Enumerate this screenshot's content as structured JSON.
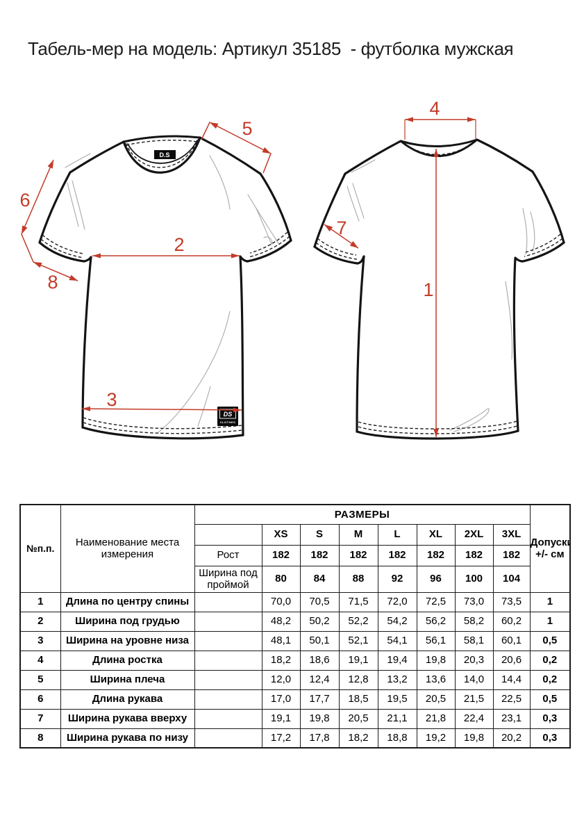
{
  "page": {
    "title": "Табель-мер на модель: Артикул 35185  - футболка мужская"
  },
  "diagram": {
    "arrow_color": "#c23b28",
    "labels": {
      "1": "1",
      "2": "2",
      "3": "3",
      "4": "4",
      "5": "5",
      "6": "6",
      "7": "7",
      "8": "8"
    },
    "collar_tag": "D.S",
    "hem_tag_line1": "DS",
    "hem_tag_line2": "CLOTHES"
  },
  "table": {
    "row_num_header": "№п.п.",
    "name_header": "Наименование места\nизмерения",
    "col_group_header": "РАЗМЕРЫ",
    "tolerance_header": "Допуски\n+/- см",
    "sizes": [
      "XS",
      "S",
      "M",
      "L",
      "XL",
      "2XL",
      "3XL"
    ],
    "height_row": {
      "label": "Рост",
      "values": [
        "182",
        "182",
        "182",
        "182",
        "182",
        "182",
        "182"
      ]
    },
    "armhole_row": {
      "label": "Ширина под\nпроймой",
      "values": [
        "80",
        "84",
        "88",
        "92",
        "96",
        "100",
        "104"
      ]
    },
    "rows": [
      {
        "num": "1",
        "name": "Длина по центру спины",
        "values": [
          "70,0",
          "70,5",
          "71,5",
          "72,0",
          "72,5",
          "73,0",
          "73,5"
        ],
        "tolerance": "1"
      },
      {
        "num": "2",
        "name": "Ширина под грудью",
        "values": [
          "48,2",
          "50,2",
          "52,2",
          "54,2",
          "56,2",
          "58,2",
          "60,2"
        ],
        "tolerance": "1"
      },
      {
        "num": "3",
        "name": "Ширина на уровне низа",
        "values": [
          "48,1",
          "50,1",
          "52,1",
          "54,1",
          "56,1",
          "58,1",
          "60,1"
        ],
        "tolerance": "0,5"
      },
      {
        "num": "4",
        "name": "Длина ростка",
        "values": [
          "18,2",
          "18,6",
          "19,1",
          "19,4",
          "19,8",
          "20,3",
          "20,6"
        ],
        "tolerance": "0,2"
      },
      {
        "num": "5",
        "name": "Ширина плеча",
        "values": [
          "12,0",
          "12,4",
          "12,8",
          "13,2",
          "13,6",
          "14,0",
          "14,4"
        ],
        "tolerance": "0,2"
      },
      {
        "num": "6",
        "name": "Длина рукава",
        "values": [
          "17,0",
          "17,7",
          "18,5",
          "19,5",
          "20,5",
          "21,5",
          "22,5"
        ],
        "tolerance": "0,5"
      },
      {
        "num": "7",
        "name": "Ширина рукава вверху",
        "values": [
          "19,1",
          "19,8",
          "20,5",
          "21,1",
          "21,8",
          "22,4",
          "23,1"
        ],
        "tolerance": "0,3"
      },
      {
        "num": "8",
        "name": "Ширина рукава по низу",
        "values": [
          "17,2",
          "17,8",
          "18,2",
          "18,8",
          "19,2",
          "19,8",
          "20,2"
        ],
        "tolerance": "0,3"
      }
    ]
  }
}
